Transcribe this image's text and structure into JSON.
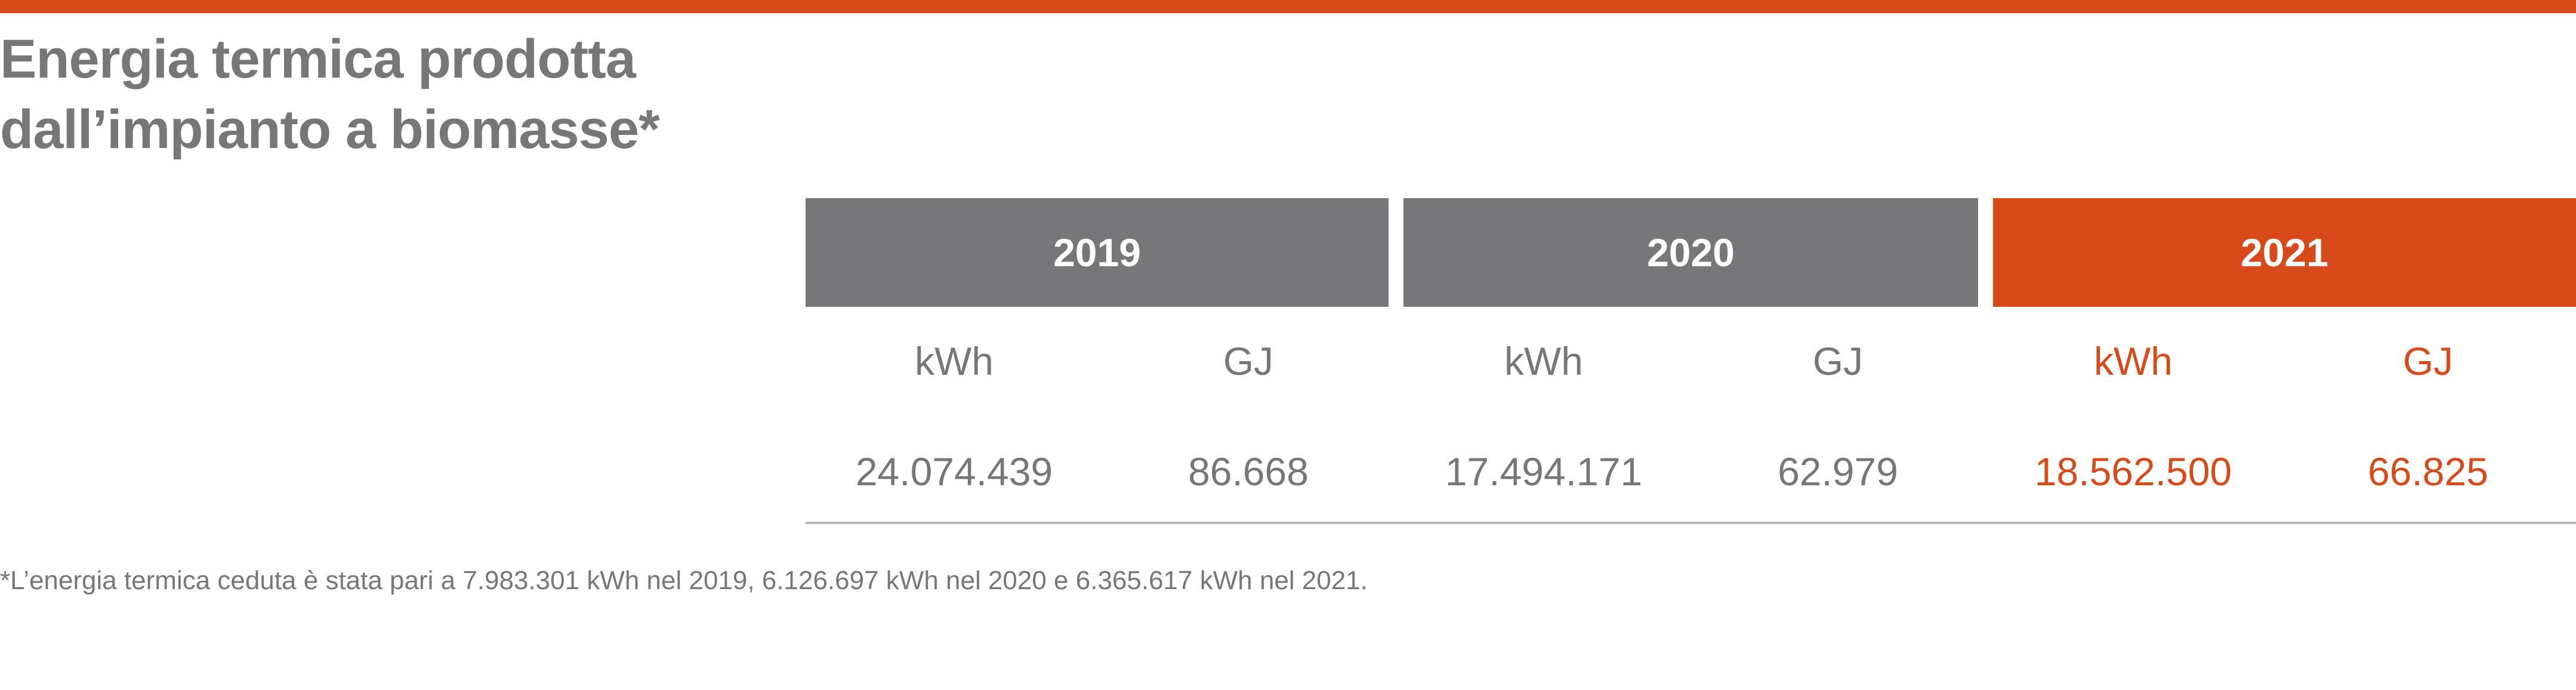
{
  "title": {
    "line1": "Energia termica prodotta",
    "line2": "dall’impianto a biomasse*"
  },
  "colors": {
    "accent": "#d94a1a",
    "grey": "#777678",
    "rule": "#b7b7b7"
  },
  "table": {
    "years": [
      "2019",
      "2020",
      "2021"
    ],
    "units": [
      "kWh",
      "GJ",
      "kWh",
      "GJ",
      "kWh",
      "GJ"
    ],
    "values": [
      "24.074.439",
      "86.668",
      "17.494.171",
      "62.979",
      "18.562.500",
      "66.825"
    ]
  },
  "footnote": "*L’energia termica ceduta è stata pari a 7.983.301 kWh nel 2019, 6.126.697 kWh nel 2020 e 6.365.617 kWh nel 2021."
}
